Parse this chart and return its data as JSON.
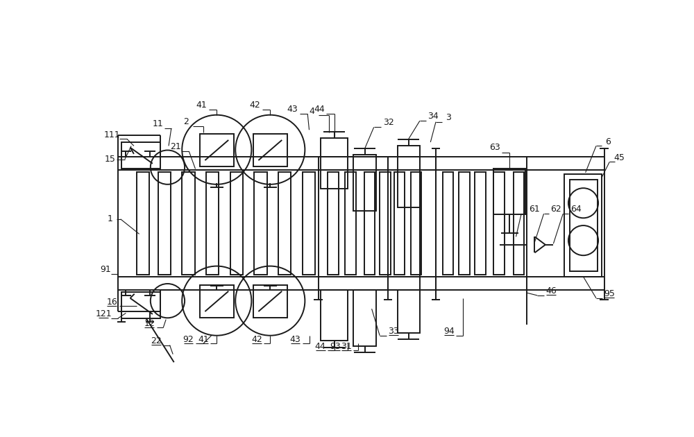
{
  "bg_color": "#ffffff",
  "line_color": "#1a1a1a",
  "fig_width": 10.0,
  "fig_height": 6.3,
  "lw_main": 1.4,
  "lw_thin": 0.9,
  "lw_leader": 0.8,
  "fs_label": 9
}
